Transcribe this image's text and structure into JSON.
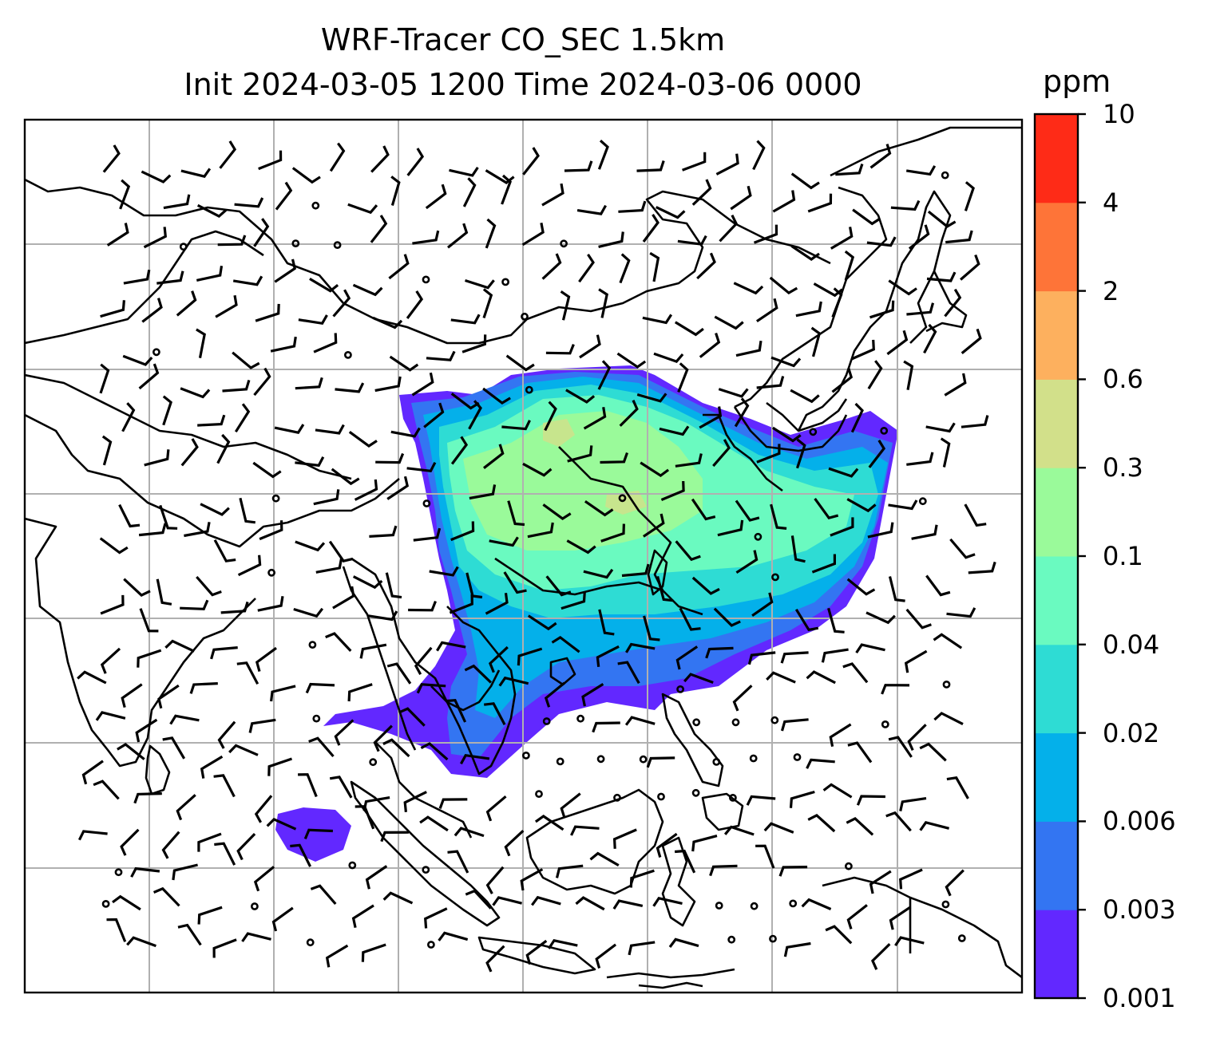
{
  "title": {
    "line1": "WRF-Tracer CO_SEC 1.5km",
    "line2": "Init 2024-03-05 1200 Time 2024-03-06 0000"
  },
  "colorbar": {
    "unit": "ppm",
    "ticks": [
      "0.001",
      "0.003",
      "0.006",
      "0.02",
      "0.04",
      "0.1",
      "0.3",
      "0.6",
      "2",
      "4",
      "10"
    ],
    "colors": [
      "#6228ff",
      "#3375f2",
      "#04b0ea",
      "#2edcd4",
      "#6afac0",
      "#9afa9a",
      "#d2e08a",
      "#fdb05e",
      "#fe7438",
      "#fe2b17"
    ]
  },
  "map": {
    "land_outline_color": "#000000",
    "gridline_color": "#b0b0b0",
    "calm_marker": "circle",
    "wind_symbol": "barb"
  }
}
